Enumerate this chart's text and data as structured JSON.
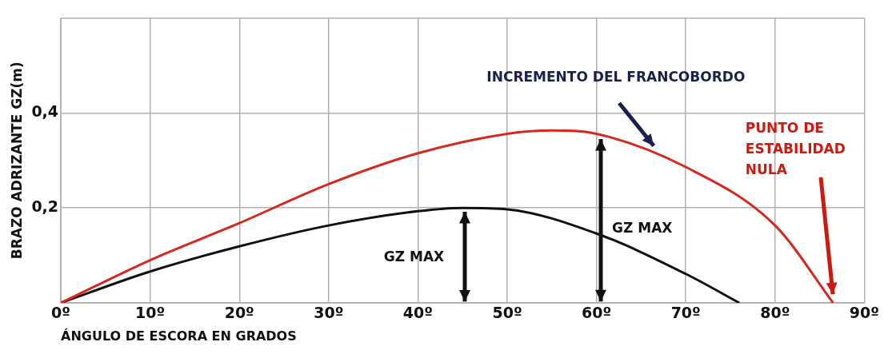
{
  "chart_data": {
    "type": "line",
    "xlabel": "ÁNGULO DE ESCORA EN GRADOS",
    "ylabel": "BRAZO ADRIZANTE GZ(m)",
    "xlim": [
      0,
      90
    ],
    "xticks": [
      {
        "value": 0,
        "label": "0º"
      },
      {
        "value": 10,
        "label": "10º"
      },
      {
        "value": 20,
        "label": "20º"
      },
      {
        "value": 30,
        "label": "30º"
      },
      {
        "value": 40,
        "label": "40º"
      },
      {
        "value": 50,
        "label": "50º"
      },
      {
        "value": 60,
        "label": "60º"
      },
      {
        "value": 70,
        "label": "70º"
      },
      {
        "value": 80,
        "label": "80º"
      },
      {
        "value": 90,
        "label": "90º"
      }
    ],
    "ylim": [
      0,
      0.6
    ],
    "yticks": [
      {
        "value": 0,
        "label": null
      },
      {
        "value": 0.2,
        "label": "0,2"
      },
      {
        "value": 0.4,
        "label": "0,4"
      },
      {
        "value": 0.6,
        "label": null
      }
    ],
    "grid": true,
    "legend": false,
    "marker": "none",
    "line_style": "solid",
    "series": [
      {
        "color": "#d42a1e",
        "x": [
          0,
          10,
          20,
          30,
          40,
          50,
          55,
          60,
          70,
          80,
          86.5
        ],
        "values": [
          0,
          0.09,
          0.168,
          0.25,
          0.315,
          0.356,
          0.363,
          0.356,
          0.286,
          0.163,
          0
        ]
      },
      {
        "color": "#111111",
        "x": [
          0,
          10,
          20,
          30,
          40,
          45,
          50,
          60,
          70,
          76
        ],
        "values": [
          0,
          0.066,
          0.119,
          0.163,
          0.193,
          0.2,
          0.197,
          0.146,
          0.061,
          0
        ]
      }
    ],
    "annotations": [
      "INCREMENTO DEL FRANCOBORDO",
      "PUNTO DE ESTABILIDAD NULA",
      "GZ MAX",
      "GZ MAX"
    ]
  }
}
